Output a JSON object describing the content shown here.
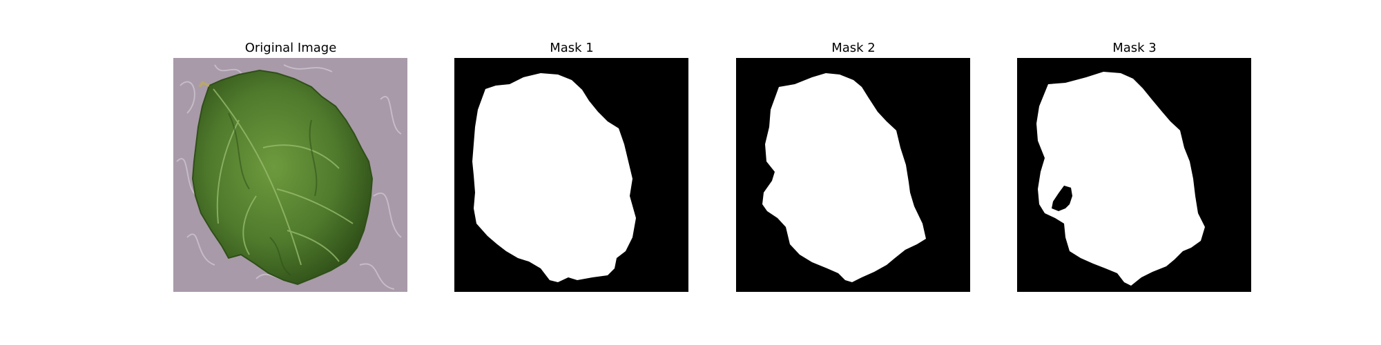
{
  "figure": {
    "panels": [
      {
        "title": "Original Image",
        "content": "leaf-photo"
      },
      {
        "title": "Mask 1",
        "content": "segmentation-mask"
      },
      {
        "title": "Mask 2",
        "content": "segmentation-mask"
      },
      {
        "title": "Mask 3",
        "content": "segmentation-mask"
      }
    ]
  },
  "colors": {
    "background": "#a89aa8",
    "leaf": "#4f7a2c",
    "leaf_dark": "#2f4f18",
    "leaf_light": "#7aa050",
    "mask_background": "#000000",
    "mask_foreground": "#ffffff"
  }
}
